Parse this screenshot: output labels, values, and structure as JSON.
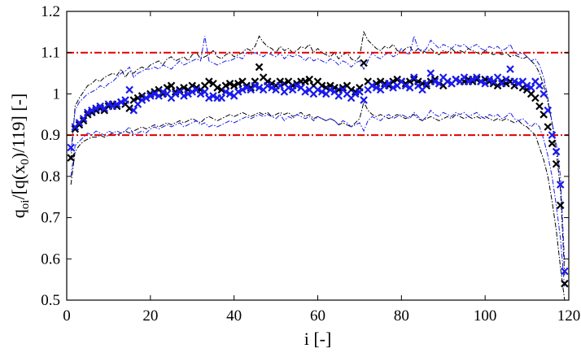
{
  "chart_data": {
    "type": "scatter",
    "title": "",
    "xlabel": "i [-]",
    "ylabel": {
      "prefix": "q",
      "prefix_sub": "oi",
      "middle": "/[q(x",
      "middle_sub": "0",
      "suffix": ")/119] [-]"
    },
    "xlim": [
      0,
      120
    ],
    "ylim": [
      0.5,
      1.2
    ],
    "x_ticks": [
      "0",
      "20",
      "40",
      "60",
      "80",
      "100",
      "120"
    ],
    "y_ticks": [
      "0.5",
      "0.6",
      "0.7",
      "0.8",
      "0.9",
      "1",
      "1.1",
      "1.2"
    ],
    "grid": false,
    "reference_lines": [
      {
        "y": 1.1,
        "color": "#dd0000",
        "style": "dash-dot"
      },
      {
        "y": 0.9,
        "color": "#dd0000",
        "style": "dash-dot"
      }
    ],
    "series": [
      {
        "color": "#000000",
        "marker": "x",
        "x": [
          1,
          2,
          3,
          4,
          5,
          6,
          7,
          8,
          9,
          10,
          11,
          12,
          13,
          14,
          15,
          16,
          17,
          18,
          19,
          20,
          21,
          22,
          23,
          24,
          25,
          26,
          27,
          28,
          29,
          30,
          31,
          32,
          33,
          34,
          35,
          36,
          37,
          38,
          39,
          40,
          41,
          42,
          43,
          44,
          45,
          46,
          47,
          48,
          49,
          50,
          51,
          52,
          53,
          54,
          55,
          56,
          57,
          58,
          59,
          60,
          61,
          62,
          63,
          64,
          65,
          66,
          67,
          68,
          69,
          70,
          71,
          72,
          73,
          74,
          75,
          76,
          77,
          78,
          79,
          80,
          81,
          82,
          83,
          84,
          85,
          86,
          87,
          88,
          89,
          90,
          91,
          92,
          93,
          94,
          95,
          96,
          97,
          98,
          99,
          100,
          101,
          102,
          103,
          104,
          105,
          106,
          107,
          108,
          109,
          110,
          111,
          112,
          113,
          114,
          115,
          116,
          117,
          118,
          119
        ],
        "values": [
          0.845,
          0.915,
          0.925,
          0.935,
          0.95,
          0.955,
          0.96,
          0.965,
          0.96,
          0.97,
          0.975,
          0.97,
          0.98,
          0.975,
          0.965,
          0.985,
          0.99,
          0.995,
          0.99,
          1.0,
          1.005,
          1.01,
          1.0,
          1.015,
          1.02,
          1.005,
          1.01,
          1.015,
          1.01,
          1.02,
          1.015,
          1.01,
          1.02,
          1.03,
          1.025,
          1.015,
          1.01,
          1.02,
          1.025,
          1.02,
          1.025,
          1.03,
          1.02,
          1.015,
          1.03,
          1.065,
          1.04,
          1.03,
          1.025,
          1.02,
          1.03,
          1.025,
          1.03,
          1.02,
          1.025,
          1.03,
          1.03,
          1.035,
          1.02,
          1.03,
          1.02,
          1.015,
          1.02,
          1.015,
          1.01,
          1.015,
          1.02,
          1.01,
          1.005,
          1.015,
          1.075,
          1.03,
          1.02,
          1.025,
          1.03,
          1.025,
          1.02,
          1.03,
          1.035,
          1.03,
          1.025,
          1.03,
          1.035,
          1.03,
          1.025,
          1.02,
          1.03,
          1.035,
          1.025,
          1.02,
          1.03,
          1.025,
          1.035,
          1.03,
          1.03,
          1.035,
          1.03,
          1.035,
          1.03,
          1.035,
          1.03,
          1.025,
          1.02,
          1.03,
          1.025,
          1.03,
          1.02,
          1.025,
          1.015,
          1.01,
          1.0,
          0.99,
          0.97,
          0.95,
          0.92,
          0.88,
          0.83,
          0.73,
          0.54
        ]
      },
      {
        "color": "#1a1aee",
        "marker": "x",
        "x": [
          1,
          2,
          3,
          4,
          5,
          6,
          7,
          8,
          9,
          10,
          11,
          12,
          13,
          14,
          15,
          16,
          17,
          18,
          19,
          20,
          21,
          22,
          23,
          24,
          25,
          26,
          27,
          28,
          29,
          30,
          31,
          32,
          33,
          34,
          35,
          36,
          37,
          38,
          39,
          40,
          41,
          42,
          43,
          44,
          45,
          46,
          47,
          48,
          49,
          50,
          51,
          52,
          53,
          54,
          55,
          56,
          57,
          58,
          59,
          60,
          61,
          62,
          63,
          64,
          65,
          66,
          67,
          68,
          69,
          70,
          71,
          72,
          73,
          74,
          75,
          76,
          77,
          78,
          79,
          80,
          81,
          82,
          83,
          84,
          85,
          86,
          87,
          88,
          89,
          90,
          91,
          92,
          93,
          94,
          95,
          96,
          97,
          98,
          99,
          100,
          101,
          102,
          103,
          104,
          105,
          106,
          107,
          108,
          109,
          110,
          111,
          112,
          113,
          114,
          115,
          116,
          117,
          118,
          119
        ],
        "values": [
          0.87,
          0.92,
          0.93,
          0.94,
          0.955,
          0.96,
          0.965,
          0.97,
          0.965,
          0.975,
          0.97,
          0.975,
          0.98,
          0.985,
          1.01,
          0.96,
          0.975,
          0.985,
          0.99,
          0.995,
          1.0,
          0.995,
          1.005,
          1.0,
          0.99,
          1.0,
          1.005,
          0.995,
          1.0,
          1.005,
          1.01,
          1.0,
          1.005,
          0.99,
          0.995,
          0.99,
          0.99,
          1.005,
          1.0,
          0.995,
          1.005,
          1.01,
          1.015,
          1.01,
          1.02,
          1.015,
          1.01,
          1.02,
          1.015,
          1.01,
          1.02,
          1.005,
          1.015,
          1.01,
          1.02,
          1.015,
          1.005,
          1.01,
          1.0,
          1.01,
          1.005,
          1.0,
          1.01,
          1.005,
          0.995,
          1.01,
          1.0,
          0.99,
          1.0,
          1.005,
          0.985,
          1.01,
          1.02,
          1.015,
          1.01,
          1.02,
          1.025,
          1.015,
          1.02,
          1.03,
          1.02,
          1.015,
          1.04,
          1.02,
          1.01,
          1.025,
          1.05,
          1.03,
          1.025,
          1.04,
          1.03,
          1.025,
          1.035,
          1.03,
          1.04,
          1.03,
          1.035,
          1.04,
          1.03,
          1.025,
          1.035,
          1.03,
          1.04,
          1.025,
          1.035,
          1.06,
          1.03,
          1.025,
          1.03,
          1.02,
          1.015,
          1.03,
          1.02,
          1.0,
          0.96,
          0.9,
          0.86,
          0.78,
          0.57
        ]
      }
    ],
    "bands": [
      {
        "color": "#000000",
        "upper": [
          0.84,
          0.97,
          0.99,
          1.005,
          1.02,
          1.025,
          1.035,
          1.03,
          1.04,
          1.045,
          1.05,
          1.045,
          1.06,
          1.04,
          1.055,
          1.05,
          1.06,
          1.065,
          1.06,
          1.07,
          1.075,
          1.08,
          1.07,
          1.085,
          1.09,
          1.08,
          1.085,
          1.09,
          1.08,
          1.095,
          1.1,
          1.085,
          1.09,
          1.095,
          1.105,
          1.09,
          1.085,
          1.095,
          1.1,
          1.09,
          1.095,
          1.1,
          1.11,
          1.105,
          1.115,
          1.14,
          1.125,
          1.115,
          1.11,
          1.1,
          1.115,
          1.105,
          1.11,
          1.1,
          1.105,
          1.115,
          1.11,
          1.12,
          1.1,
          1.11,
          1.1,
          1.095,
          1.09,
          1.1,
          1.085,
          1.095,
          1.1,
          1.085,
          1.08,
          1.09,
          1.15,
          1.13,
          1.12,
          1.11,
          1.105,
          1.115,
          1.11,
          1.12,
          1.105,
          1.1,
          1.11,
          1.115,
          1.1,
          1.11,
          1.105,
          1.1,
          1.11,
          1.1,
          1.095,
          1.105,
          1.1,
          1.11,
          1.1,
          1.105,
          1.1,
          1.11,
          1.105,
          1.1,
          1.095,
          1.105,
          1.1,
          1.095,
          1.1,
          1.095,
          1.1,
          1.09,
          1.095,
          1.09,
          1.085,
          1.09,
          1.08,
          1.07,
          1.05,
          1.02,
          0.98,
          0.93,
          0.86,
          0.77,
          0.56
        ],
        "lower": [
          0.78,
          0.86,
          0.875,
          0.885,
          0.89,
          0.895,
          0.895,
          0.9,
          0.895,
          0.9,
          0.905,
          0.9,
          0.905,
          0.91,
          0.905,
          0.91,
          0.915,
          0.92,
          0.915,
          0.92,
          0.925,
          0.92,
          0.925,
          0.93,
          0.925,
          0.93,
          0.935,
          0.93,
          0.935,
          0.94,
          0.935,
          0.93,
          0.94,
          0.945,
          0.94,
          0.935,
          0.94,
          0.945,
          0.95,
          0.945,
          0.95,
          0.955,
          0.95,
          0.945,
          0.95,
          0.955,
          0.95,
          0.955,
          0.945,
          0.95,
          0.955,
          0.95,
          0.955,
          0.945,
          0.95,
          0.955,
          0.945,
          0.95,
          0.94,
          0.945,
          0.94,
          0.935,
          0.94,
          0.935,
          0.925,
          0.93,
          0.925,
          0.92,
          0.93,
          0.94,
          0.98,
          0.96,
          0.95,
          0.945,
          0.95,
          0.945,
          0.94,
          0.945,
          0.95,
          0.945,
          0.94,
          0.945,
          0.95,
          0.94,
          0.935,
          0.94,
          0.945,
          0.94,
          0.935,
          0.94,
          0.945,
          0.94,
          0.95,
          0.945,
          0.94,
          0.945,
          0.94,
          0.945,
          0.94,
          0.945,
          0.94,
          0.935,
          0.94,
          0.935,
          0.94,
          0.935,
          0.93,
          0.935,
          0.925,
          0.92,
          0.91,
          0.9,
          0.87,
          0.84,
          0.8,
          0.74,
          0.67,
          0.58,
          0.5
        ]
      },
      {
        "color": "#1a1aee",
        "upper": [
          0.86,
          0.96,
          0.98,
          0.99,
          1.0,
          1.005,
          1.01,
          1.02,
          1.015,
          1.025,
          1.03,
          1.04,
          1.05,
          1.055,
          1.065,
          1.04,
          1.05,
          1.055,
          1.06,
          1.06,
          1.065,
          1.06,
          1.07,
          1.065,
          1.06,
          1.07,
          1.08,
          1.07,
          1.075,
          1.08,
          1.085,
          1.08,
          1.14,
          1.08,
          1.075,
          1.07,
          1.075,
          1.08,
          1.08,
          1.085,
          1.09,
          1.085,
          1.1,
          1.095,
          1.1,
          1.095,
          1.09,
          1.1,
          1.095,
          1.09,
          1.1,
          1.085,
          1.095,
          1.09,
          1.095,
          1.09,
          1.08,
          1.09,
          1.08,
          1.085,
          1.08,
          1.075,
          1.085,
          1.08,
          1.07,
          1.08,
          1.075,
          1.065,
          1.075,
          1.08,
          1.06,
          1.08,
          1.1,
          1.09,
          1.085,
          1.095,
          1.1,
          1.09,
          1.095,
          1.11,
          1.1,
          1.095,
          1.14,
          1.11,
          1.1,
          1.11,
          1.13,
          1.12,
          1.11,
          1.12,
          1.115,
          1.11,
          1.12,
          1.115,
          1.12,
          1.11,
          1.115,
          1.12,
          1.11,
          1.105,
          1.115,
          1.11,
          1.115,
          1.105,
          1.11,
          1.12,
          1.1,
          1.095,
          1.1,
          1.09,
          1.08,
          1.085,
          1.07,
          1.04,
          0.99,
          0.93,
          0.88,
          0.8,
          0.59
        ],
        "lower": [
          0.8,
          0.875,
          0.885,
          0.895,
          0.905,
          0.9,
          0.91,
          0.905,
          0.9,
          0.91,
          0.905,
          0.91,
          0.905,
          0.91,
          0.92,
          0.9,
          0.905,
          0.91,
          0.905,
          0.915,
          0.92,
          0.915,
          0.92,
          0.925,
          0.92,
          0.925,
          0.93,
          0.92,
          0.925,
          0.93,
          0.935,
          0.925,
          0.93,
          0.92,
          0.925,
          0.92,
          0.925,
          0.93,
          0.935,
          0.93,
          0.935,
          0.94,
          0.945,
          0.94,
          0.945,
          0.95,
          0.945,
          0.95,
          0.945,
          0.94,
          0.95,
          0.935,
          0.945,
          0.94,
          0.95,
          0.945,
          0.94,
          0.945,
          0.935,
          0.945,
          0.94,
          0.935,
          0.94,
          0.935,
          0.925,
          0.935,
          0.93,
          0.92,
          0.925,
          0.93,
          0.91,
          0.935,
          0.945,
          0.94,
          0.935,
          0.945,
          0.95,
          0.94,
          0.945,
          0.95,
          0.945,
          0.94,
          0.955,
          0.945,
          0.935,
          0.945,
          0.96,
          0.95,
          0.945,
          0.955,
          0.95,
          0.945,
          0.955,
          0.95,
          0.955,
          0.945,
          0.95,
          0.955,
          0.945,
          0.94,
          0.95,
          0.945,
          0.95,
          0.94,
          0.945,
          0.955,
          0.94,
          0.935,
          0.94,
          0.93,
          0.92,
          0.93,
          0.92,
          0.89,
          0.85,
          0.8,
          0.73,
          0.65,
          0.53
        ]
      }
    ]
  }
}
